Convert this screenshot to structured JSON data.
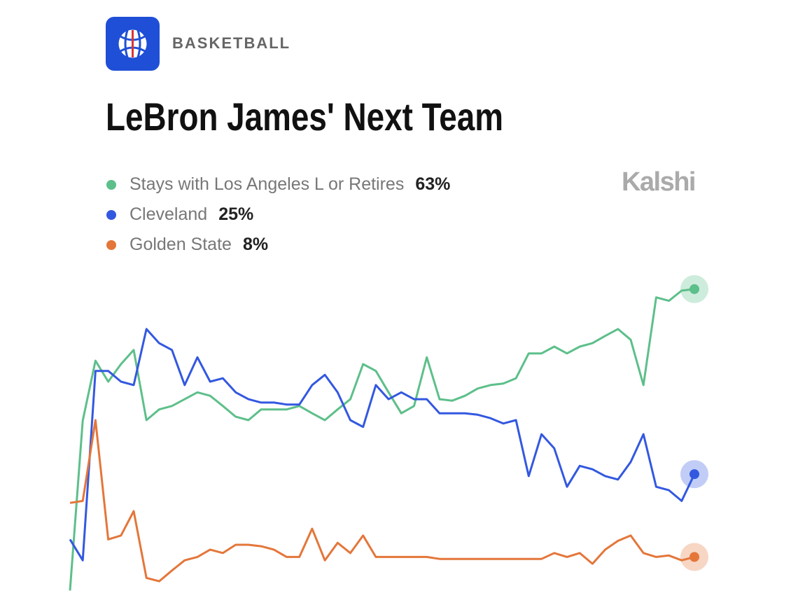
{
  "chart_data": {
    "type": "line",
    "category": "BASKETBALL",
    "title": "LeBron James' Next Team",
    "brand": "Kalshi",
    "ylim": [
      0,
      65
    ],
    "series": [
      {
        "name": "Stays with Los Angeles L or Retires",
        "color": "#5dbf8a",
        "current_label": "63%",
        "values": [
          1.1,
          36,
          48.3,
          44,
          47.6,
          50.5,
          36.1,
          38.3,
          39,
          40.4,
          41.8,
          41.1,
          39,
          36.8,
          36.1,
          38.3,
          38.3,
          38.3,
          39,
          37.5,
          36.1,
          38.3,
          40.4,
          47.6,
          46.2,
          41.8,
          37.5,
          39,
          49,
          40.4,
          40.1,
          41.1,
          42.6,
          43.3,
          43.6,
          44.7,
          49.8,
          49.8,
          51.2,
          49.8,
          51.2,
          51.9,
          53.4,
          54.8,
          52.6,
          43.3,
          61.3,
          60.6,
          62.7,
          63
        ]
      },
      {
        "name": "Cleveland",
        "color": "#3358e0",
        "current_label": "25%",
        "values": [
          11.6,
          7.3,
          46.2,
          46.2,
          44,
          43.3,
          54.8,
          51.9,
          50.5,
          43.3,
          49,
          44,
          44.7,
          41.8,
          40.4,
          39.7,
          39.7,
          39.3,
          39.3,
          43.3,
          45.4,
          41.8,
          36.1,
          34.7,
          43.3,
          40.4,
          41.8,
          40.4,
          40.4,
          37.5,
          37.5,
          37.5,
          37.2,
          36.5,
          35.4,
          36.1,
          24.6,
          33.2,
          30.3,
          22.4,
          26.7,
          26,
          24.6,
          23.9,
          27.5,
          33.2,
          22.4,
          21.7,
          19.5,
          25
        ]
      },
      {
        "name": "Golden State",
        "color": "#e4763a",
        "current_label": "8%",
        "values": [
          19.1,
          19.5,
          36.1,
          11.6,
          12.4,
          17.4,
          3.7,
          3,
          5.2,
          7.3,
          8,
          9.5,
          8.8,
          10.5,
          10.5,
          10.2,
          9.5,
          8,
          8,
          13.8,
          7.3,
          10.9,
          8.8,
          12.4,
          8,
          8,
          8,
          8,
          8,
          7.6,
          7.6,
          7.6,
          7.6,
          7.6,
          7.6,
          7.6,
          7.6,
          7.6,
          8.8,
          8,
          8.8,
          6.6,
          9.5,
          11.3,
          12.4,
          8.8,
          8,
          8.3,
          7.3,
          8
        ]
      }
    ]
  }
}
